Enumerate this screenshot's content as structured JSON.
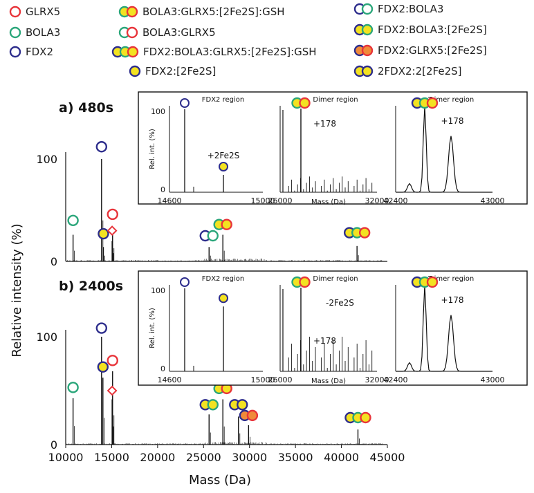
{
  "colors": {
    "red": "#e8343a",
    "green": "#2aa67a",
    "blue": "#2d2d8c",
    "yellow": "#f3e221",
    "orange": "#f08a3a"
  },
  "legend": [
    {
      "label": "GLRX5",
      "balls": [
        {
          "fill": "white",
          "stroke": "red"
        }
      ]
    },
    {
      "label": "BOLA3",
      "balls": [
        {
          "fill": "white",
          "stroke": "green"
        }
      ]
    },
    {
      "label": "FDX2",
      "balls": [
        {
          "fill": "white",
          "stroke": "blue"
        }
      ]
    },
    {
      "label": "BOLA3:GLRX5:[2Fe2S]:GSH",
      "balls": [
        {
          "fill": "yellow",
          "stroke": "green"
        },
        {
          "fill": "yellow",
          "stroke": "red"
        }
      ]
    },
    {
      "label": "BOLA3:GLRX5",
      "balls": [
        {
          "fill": "white",
          "stroke": "green"
        },
        {
          "fill": "white",
          "stroke": "red"
        }
      ]
    },
    {
      "label": "FDX2:BOLA3:GLRX5:[2Fe2S]:GSH",
      "balls": [
        {
          "fill": "yellow",
          "stroke": "blue"
        },
        {
          "fill": "yellow",
          "stroke": "green"
        },
        {
          "fill": "yellow",
          "stroke": "red"
        }
      ]
    },
    {
      "label": "FDX2:[2Fe2S]",
      "balls": [
        {
          "fill": "yellow",
          "stroke": "blue"
        }
      ]
    },
    {
      "label": "FDX2:BOLA3",
      "balls": [
        {
          "fill": "white",
          "stroke": "blue"
        },
        {
          "fill": "white",
          "stroke": "green"
        }
      ]
    },
    {
      "label": "FDX2:BOLA3:[2Fe2S]",
      "balls": [
        {
          "fill": "yellow",
          "stroke": "blue"
        },
        {
          "fill": "yellow",
          "stroke": "green"
        }
      ]
    },
    {
      "label": "FDX2:GLRX5:[2Fe2S]",
      "balls": [
        {
          "fill": "orange",
          "stroke": "blue"
        },
        {
          "fill": "orange",
          "stroke": "red"
        }
      ]
    },
    {
      "label": "2FDX2:2[2Fe2S]",
      "balls": [
        {
          "fill": "yellow",
          "stroke": "blue"
        },
        {
          "fill": "yellow",
          "stroke": "blue"
        }
      ]
    }
  ],
  "chart_data": [
    {
      "type": "line",
      "panel_label": "a) 480s",
      "xlabel": "Mass (Da)",
      "ylabel": "Relative intensity (%)",
      "xlim": [
        10000,
        45000
      ],
      "ylim": [
        0,
        100
      ],
      "yticks": [
        0,
        100
      ],
      "peaks": [
        {
          "x": 10800,
          "y": 26,
          "marker": [
            {
              "fill": "white",
              "stroke": "green"
            }
          ],
          "marker_y": 40
        },
        {
          "x": 13900,
          "y": 100,
          "marker": [
            {
              "fill": "white",
              "stroke": "blue"
            }
          ],
          "marker_y": 112
        },
        {
          "x": 14100,
          "y": 14,
          "marker": [
            {
              "fill": "yellow",
              "stroke": "blue"
            }
          ],
          "marker_y": 27
        },
        {
          "x": 15100,
          "y": 32,
          "marker": [
            {
              "fill": "white",
              "stroke": "red"
            }
          ],
          "marker_y": 46
        },
        {
          "x": 15050,
          "y": 20,
          "marker": [
            {
              "shape": "diamond",
              "stroke": "red"
            }
          ],
          "marker_y": 30
        },
        {
          "x": 25600,
          "y": 14,
          "marker": [
            {
              "fill": "white",
              "stroke": "blue"
            },
            {
              "fill": "white",
              "stroke": "green"
            }
          ],
          "marker_y": 25
        },
        {
          "x": 27100,
          "y": 26,
          "marker": [
            {
              "fill": "yellow",
              "stroke": "green"
            },
            {
              "fill": "yellow",
              "stroke": "red"
            }
          ],
          "marker_y": 36
        },
        {
          "x": 41700,
          "y": 15,
          "marker": [
            {
              "fill": "yellow",
              "stroke": "blue"
            },
            {
              "fill": "yellow",
              "stroke": "green"
            },
            {
              "fill": "yellow",
              "stroke": "red"
            }
          ],
          "marker_y": 28
        }
      ],
      "insets": [
        {
          "title": "FDX2 region",
          "xlim": [
            14600,
            15000
          ],
          "xticks": [
            "14600",
            "15000"
          ],
          "yticks": [
            "100",
            "0"
          ],
          "ylabel": "Rel. int. (%)",
          "annotations": [
            "+2Fe2S"
          ]
        },
        {
          "title": "Dimer region",
          "xlim": [
            26000,
            32000
          ],
          "xticks": [
            "26000",
            "32000"
          ],
          "xlabel": "Mass (Da)",
          "annotations": [
            "+178"
          ]
        },
        {
          "title": "Trimer region",
          "xlim": [
            42400,
            43000
          ],
          "xticks": [
            "42400",
            "43000"
          ],
          "annotations": [
            "+178"
          ]
        }
      ]
    },
    {
      "type": "line",
      "panel_label": "b) 2400s",
      "xlabel": "Mass (Da)",
      "ylabel": "Relative intensity (%)",
      "xlim": [
        10000,
        45000
      ],
      "ylim": [
        0,
        100
      ],
      "xticks": [
        10000,
        15000,
        20000,
        25000,
        30000,
        35000,
        40000,
        45000
      ],
      "yticks": [
        0,
        100
      ],
      "peaks": [
        {
          "x": 10800,
          "y": 43,
          "marker": [
            {
              "fill": "white",
              "stroke": "green"
            }
          ],
          "marker_y": 53
        },
        {
          "x": 13900,
          "y": 100,
          "marker": [
            {
              "fill": "white",
              "stroke": "blue"
            }
          ],
          "marker_y": 108
        },
        {
          "x": 14050,
          "y": 62,
          "marker": [
            {
              "fill": "yellow",
              "stroke": "blue"
            }
          ],
          "marker_y": 72
        },
        {
          "x": 15100,
          "y": 68,
          "marker": [
            {
              "fill": "white",
              "stroke": "red"
            }
          ],
          "marker_y": 78
        },
        {
          "x": 15050,
          "y": 42,
          "marker": [
            {
              "shape": "diamond",
              "stroke": "red"
            }
          ],
          "marker_y": 50
        },
        {
          "x": 25600,
          "y": 28,
          "marker": [
            {
              "fill": "yellow",
              "stroke": "blue"
            },
            {
              "fill": "yellow",
              "stroke": "green"
            }
          ],
          "marker_y": 37
        },
        {
          "x": 27100,
          "y": 42,
          "marker": [
            {
              "fill": "yellow",
              "stroke": "green"
            },
            {
              "fill": "yellow",
              "stroke": "red"
            }
          ],
          "marker_y": 52
        },
        {
          "x": 28800,
          "y": 26,
          "marker": [
            {
              "fill": "yellow",
              "stroke": "blue"
            },
            {
              "fill": "yellow",
              "stroke": "blue"
            }
          ],
          "marker_y": 37
        },
        {
          "x": 29900,
          "y": 18,
          "marker": [
            {
              "fill": "orange",
              "stroke": "blue"
            },
            {
              "fill": "orange",
              "stroke": "red"
            }
          ],
          "marker_y": 27
        },
        {
          "x": 41800,
          "y": 14,
          "marker": [
            {
              "fill": "yellow",
              "stroke": "blue"
            },
            {
              "fill": "yellow",
              "stroke": "green"
            },
            {
              "fill": "yellow",
              "stroke": "red"
            }
          ],
          "marker_y": 25
        }
      ],
      "insets": [
        {
          "title": "FDX2 region",
          "xlim": [
            14600,
            15000
          ],
          "xticks": [
            "14600",
            "15000"
          ],
          "yticks": [
            "100",
            "0"
          ],
          "ylabel": "Rel. int. (%)",
          "annotations": []
        },
        {
          "title": "Dimer region",
          "xlim": [
            26000,
            32000
          ],
          "xticks": [
            "26000",
            "32000"
          ],
          "xlabel": "Mass (Da)",
          "annotations": [
            "-2Fe2S",
            "+178"
          ]
        },
        {
          "title": "Trimer region",
          "xlim": [
            42400,
            43000
          ],
          "xticks": [
            "42400",
            "43000"
          ],
          "annotations": [
            "+178"
          ]
        }
      ]
    }
  ]
}
